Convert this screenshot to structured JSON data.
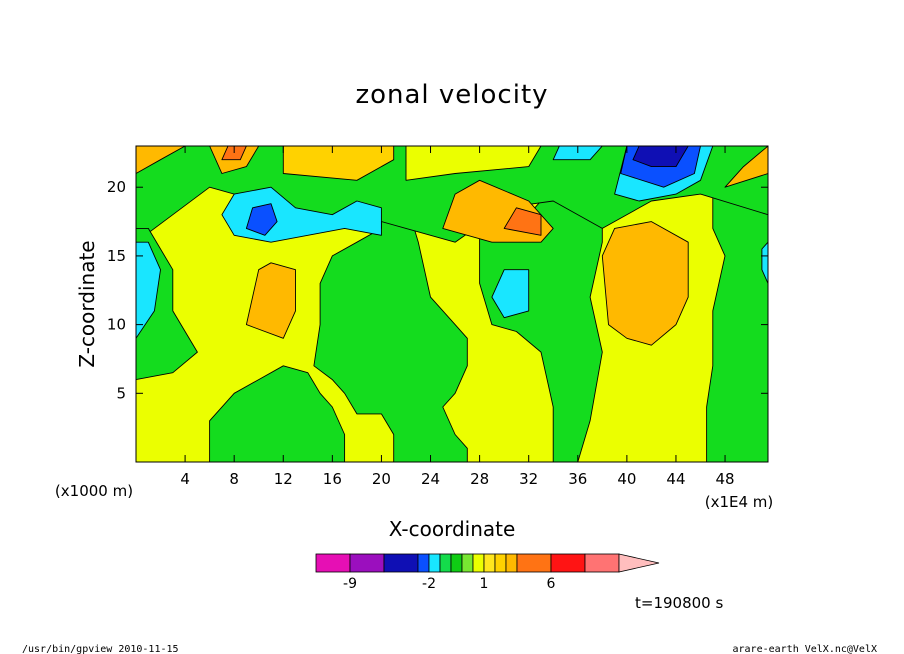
{
  "footer": {
    "left": "/usr/bin/gpview   2010-11-15",
    "right": "arare-earth_VelX.nc@VelX"
  },
  "time_label": "t=190800 s",
  "chart_data": {
    "type": "heatmap",
    "title": "zonal velocity",
    "xlabel": "X-coordinate",
    "ylabel": "Z-coordinate",
    "x_unit_left": "(x1000 m)",
    "x_unit_right": "(x1E4 m)",
    "xlim": [
      0,
      51.5
    ],
    "ylim": [
      0,
      23
    ],
    "xticks": [
      4,
      8,
      12,
      16,
      20,
      24,
      28,
      32,
      36,
      40,
      44,
      48
    ],
    "yticks": [
      5,
      10,
      15,
      20
    ],
    "colorbar": {
      "levels": [
        -12,
        -9,
        -6,
        -3,
        -2,
        -1,
        -0.5,
        0,
        0.5,
        1,
        1.5,
        2,
        3,
        6,
        9,
        12
      ],
      "colors": [
        "#e60fb4",
        "#9b0fbe",
        "#0f0fb4",
        "#0a50ff",
        "#19e6ff",
        "#14dc4b",
        "#0fcd14",
        "#78e632",
        "#ebff00",
        "#ffe61e",
        "#ffd200",
        "#ffb900",
        "#ff7314",
        "#ff1414",
        "#ff7373"
      ],
      "extend_color": "#ffbebe",
      "tick_labels": [
        {
          "value": -9,
          "label": "-9"
        },
        {
          "value": -2,
          "label": "-2"
        },
        {
          "value": 1,
          "label": "1"
        },
        {
          "value": 6,
          "label": "6"
        }
      ]
    },
    "field_regions": [
      {
        "name": "background",
        "value": 0.8,
        "color": "#ebff00"
      },
      {
        "name": "lower-left-green-column",
        "value": -0.3,
        "color": "#14dc1e",
        "poly": [
          [
            6,
            0
          ],
          [
            6,
            3
          ],
          [
            8,
            5
          ],
          [
            10,
            6
          ],
          [
            12,
            7
          ],
          [
            14,
            6.5
          ],
          [
            15,
            5
          ],
          [
            16,
            4
          ],
          [
            17,
            2
          ],
          [
            17,
            0
          ]
        ]
      },
      {
        "name": "center-green-column",
        "value": -0.3,
        "color": "#14dc1e",
        "poly": [
          [
            14.5,
            7
          ],
          [
            15,
            10
          ],
          [
            15,
            13
          ],
          [
            16,
            15
          ],
          [
            18,
            16
          ],
          [
            20,
            17
          ],
          [
            20,
            19
          ],
          [
            22,
            19
          ],
          [
            23,
            16
          ],
          [
            24,
            12
          ],
          [
            26,
            10
          ],
          [
            27,
            9
          ],
          [
            27,
            7
          ],
          [
            26,
            5
          ],
          [
            25,
            4
          ],
          [
            26,
            2
          ],
          [
            27,
            1
          ],
          [
            27,
            0
          ],
          [
            21,
            0
          ],
          [
            21,
            2
          ],
          [
            20,
            3.5
          ],
          [
            18,
            3.5
          ],
          [
            17,
            5
          ],
          [
            16,
            6
          ]
        ]
      },
      {
        "name": "right-green-column",
        "value": -0.3,
        "color": "#14dc1e",
        "poly": [
          [
            34,
            0
          ],
          [
            34,
            4
          ],
          [
            33,
            8
          ],
          [
            31,
            9.5
          ],
          [
            29,
            10
          ],
          [
            28,
            13
          ],
          [
            28,
            17
          ],
          [
            30,
            20
          ],
          [
            32,
            18
          ],
          [
            34,
            20
          ],
          [
            38,
            19
          ],
          [
            38,
            16
          ],
          [
            37,
            12
          ],
          [
            38,
            8
          ],
          [
            37,
            3
          ],
          [
            36,
            0
          ]
        ]
      },
      {
        "name": "far-right-green",
        "value": -0.3,
        "color": "#14dc1e",
        "poly": [
          [
            46.5,
            0
          ],
          [
            46.5,
            4
          ],
          [
            47,
            7
          ],
          [
            47,
            11
          ],
          [
            48,
            15
          ],
          [
            47,
            17
          ],
          [
            47,
            20
          ],
          [
            49,
            20
          ],
          [
            51.5,
            22
          ],
          [
            51.5,
            0
          ]
        ]
      },
      {
        "name": "top-green-band",
        "value": -0.3,
        "color": "#14dc1e",
        "poly": [
          [
            0,
            16
          ],
          [
            3,
            18
          ],
          [
            6,
            20
          ],
          [
            10,
            19
          ],
          [
            14,
            17.5
          ],
          [
            18,
            18
          ],
          [
            22,
            17
          ],
          [
            26,
            16
          ],
          [
            30,
            18.5
          ],
          [
            34,
            19
          ],
          [
            38,
            17
          ],
          [
            42,
            19
          ],
          [
            46,
            19.5
          ],
          [
            51.5,
            18
          ],
          [
            51.5,
            23
          ],
          [
            0,
            23
          ]
        ]
      },
      {
        "name": "left-edge-green",
        "value": -0.3,
        "color": "#14dc1e",
        "poly": [
          [
            0,
            6
          ],
          [
            3,
            6.5
          ],
          [
            5,
            8
          ],
          [
            3,
            11
          ],
          [
            3,
            14
          ],
          [
            1,
            17
          ],
          [
            0,
            17
          ]
        ]
      },
      {
        "name": "top-left-orange",
        "value": 2.5,
        "color": "#ffb900",
        "poly": [
          [
            0,
            21
          ],
          [
            2,
            22
          ],
          [
            4,
            23
          ],
          [
            0,
            23
          ]
        ]
      },
      {
        "name": "top-orange-patch-1",
        "value": 2.5,
        "color": "#ffb900",
        "poly": [
          [
            7,
            21
          ],
          [
            9,
            21.5
          ],
          [
            10,
            23
          ],
          [
            6,
            23
          ]
        ]
      },
      {
        "name": "top-orange-patch-2",
        "value": 2.5,
        "color": "#ffd200",
        "poly": [
          [
            12,
            21
          ],
          [
            18,
            20.5
          ],
          [
            21,
            22
          ],
          [
            21,
            23
          ],
          [
            12,
            23
          ]
        ]
      },
      {
        "name": "upper-yellow-band",
        "value": 1.0,
        "color": "#ebff00",
        "poly": [
          [
            22,
            20.5
          ],
          [
            26,
            21
          ],
          [
            32,
            21.5
          ],
          [
            33,
            23
          ],
          [
            22,
            23
          ]
        ]
      },
      {
        "name": "left-orange-blob",
        "value": 2.5,
        "color": "#ffb900",
        "poly": [
          [
            9,
            10
          ],
          [
            10,
            14
          ],
          [
            11,
            14.5
          ],
          [
            13,
            14
          ],
          [
            13,
            11
          ],
          [
            12,
            9
          ]
        ]
      },
      {
        "name": "right-orange-column",
        "value": 2.5,
        "color": "#ffb900",
        "poly": [
          [
            38.5,
            10
          ],
          [
            38,
            15
          ],
          [
            39,
            17
          ],
          [
            42,
            17.5
          ],
          [
            45,
            16
          ],
          [
            45,
            12
          ],
          [
            44,
            10
          ],
          [
            42,
            8.5
          ],
          [
            40,
            9
          ]
        ]
      },
      {
        "name": "upper-mid-orange",
        "value": 2.5,
        "color": "#ffb900",
        "poly": [
          [
            25,
            17
          ],
          [
            26,
            19.5
          ],
          [
            28,
            20.5
          ],
          [
            32,
            19
          ],
          [
            34,
            17
          ],
          [
            33,
            16
          ],
          [
            29,
            16
          ]
        ]
      },
      {
        "name": "dark-orange-spot",
        "value": 4.5,
        "color": "#ff7314",
        "poly": [
          [
            30,
            17
          ],
          [
            31,
            18.5
          ],
          [
            33,
            18
          ],
          [
            33,
            16.5
          ]
        ]
      },
      {
        "name": "top-orange-spot-left",
        "value": 4.5,
        "color": "#ff7314",
        "poly": [
          [
            7,
            22
          ],
          [
            7.5,
            23
          ],
          [
            9,
            23
          ],
          [
            8.5,
            22
          ]
        ]
      },
      {
        "name": "upper-blue-band",
        "value": -1.5,
        "color": "#19e6ff",
        "poly": [
          [
            7,
            18
          ],
          [
            8,
            19.5
          ],
          [
            11,
            20
          ],
          [
            13,
            18.5
          ],
          [
            16,
            18
          ],
          [
            18,
            19
          ],
          [
            20,
            18.5
          ],
          [
            20,
            16.5
          ],
          [
            17,
            17
          ],
          [
            14,
            16.5
          ],
          [
            11,
            16
          ],
          [
            8,
            16.5
          ]
        ]
      },
      {
        "name": "upper-dark-blue",
        "value": -4,
        "color": "#0a50ff",
        "poly": [
          [
            9,
            17
          ],
          [
            9.5,
            18.5
          ],
          [
            11,
            18.8
          ],
          [
            11.5,
            17.5
          ],
          [
            10.5,
            16.5
          ]
        ]
      },
      {
        "name": "top-cyan-right",
        "value": -1.5,
        "color": "#19e6ff",
        "poly": [
          [
            39,
            19.5
          ],
          [
            40,
            23
          ],
          [
            47,
            23
          ],
          [
            46,
            20.5
          ],
          [
            44,
            19.5
          ],
          [
            41,
            19
          ]
        ]
      },
      {
        "name": "top-blue-right",
        "value": -4,
        "color": "#0a50ff",
        "poly": [
          [
            39.5,
            21
          ],
          [
            40,
            23
          ],
          [
            46,
            23
          ],
          [
            45.5,
            21
          ],
          [
            43,
            20
          ]
        ]
      },
      {
        "name": "top-navy-right",
        "value": -7,
        "color": "#0f0fb4",
        "poly": [
          [
            40.5,
            22
          ],
          [
            41,
            23
          ],
          [
            45,
            23
          ],
          [
            44,
            21.5
          ],
          [
            42,
            21.5
          ]
        ]
      },
      {
        "name": "top-cyan-center",
        "value": -1.5,
        "color": "#19e6ff",
        "poly": [
          [
            34,
            22
          ],
          [
            34.5,
            23
          ],
          [
            38,
            23
          ],
          [
            37,
            22
          ]
        ]
      },
      {
        "name": "left-cyan-strip",
        "value": -1.5,
        "color": "#19e6ff",
        "poly": [
          [
            0,
            9
          ],
          [
            0,
            16
          ],
          [
            1,
            16
          ],
          [
            2,
            14
          ],
          [
            1.5,
            11
          ]
        ]
      },
      {
        "name": "mid-cyan-block",
        "value": -1.5,
        "color": "#19e6ff",
        "poly": [
          [
            29,
            12
          ],
          [
            30,
            14
          ],
          [
            32,
            14
          ],
          [
            32,
            11
          ],
          [
            30,
            10.5
          ]
        ]
      },
      {
        "name": "right-cyan-edge",
        "value": -1.5,
        "color": "#19e6ff",
        "poly": [
          [
            51,
            14
          ],
          [
            51.5,
            13
          ],
          [
            51.5,
            16
          ],
          [
            51,
            15.5
          ]
        ]
      },
      {
        "name": "top-right-orange",
        "value": 2.5,
        "color": "#ffb900",
        "poly": [
          [
            48,
            20
          ],
          [
            49.5,
            21.5
          ],
          [
            51.5,
            23
          ],
          [
            51.5,
            21
          ]
        ]
      }
    ]
  }
}
